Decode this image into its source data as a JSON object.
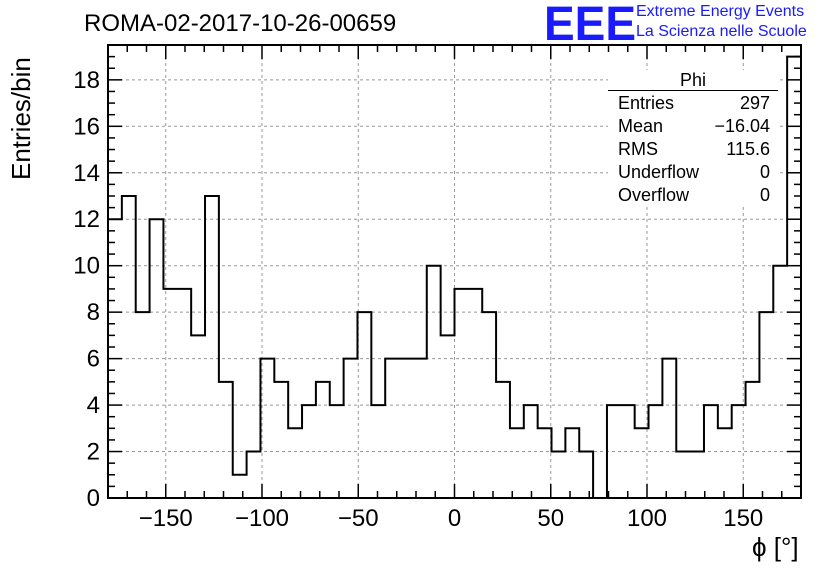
{
  "header": {
    "run_title": "ROMA-02-2017-10-26-00659",
    "logo_letters": "EEE",
    "logo_line1": "Extreme Energy Events",
    "logo_line2": "La Scienza nelle Scuole",
    "logo_color": "#1a1aff"
  },
  "stats": {
    "name": "Phi",
    "rows": [
      {
        "label": "Entries",
        "value": "297"
      },
      {
        "label": "Mean",
        "value": "−16.04"
      },
      {
        "label": "RMS",
        "value": "115.6"
      },
      {
        "label": "Underflow",
        "value": "0"
      },
      {
        "label": "Overflow",
        "value": "0"
      }
    ]
  },
  "chart_data": {
    "type": "bar",
    "histogram_step": true,
    "title": "ROMA-02-2017-10-26-00659",
    "xlabel": "ϕ [°]",
    "ylabel": "Entries/bin",
    "xlim": [
      -180,
      180
    ],
    "ylim": [
      0,
      19.5
    ],
    "bin_width": 7.2,
    "bin_low_edges": [
      -180,
      -172.8,
      -165.6,
      -158.4,
      -151.2,
      -144,
      -136.8,
      -129.6,
      -122.4,
      -115.2,
      -108,
      -100.8,
      -93.6,
      -86.4,
      -79.2,
      -72,
      -64.8,
      -57.6,
      -50.4,
      -43.2,
      -36,
      -28.8,
      -21.6,
      -14.4,
      -7.2,
      0,
      7.2,
      14.4,
      21.6,
      28.8,
      36,
      43.2,
      50.4,
      57.6,
      64.8,
      72,
      79.2,
      86.4,
      93.6,
      100.8,
      108,
      115.2,
      122.4,
      129.6,
      136.8,
      144,
      151.2,
      158.4,
      165.6,
      172.8
    ],
    "values": [
      12,
      13,
      8,
      12,
      9,
      9,
      7,
      13,
      5,
      1,
      2,
      6,
      5,
      3,
      4,
      5,
      4,
      6,
      8,
      4,
      6,
      6,
      6,
      10,
      7,
      9,
      9,
      8,
      5,
      3,
      4,
      3,
      2,
      3,
      2,
      0,
      4,
      4,
      3,
      4,
      6,
      2,
      2,
      4,
      3,
      4,
      5,
      8,
      10,
      19
    ],
    "x_ticks": [
      -150,
      -100,
      -50,
      0,
      50,
      100,
      150
    ],
    "y_ticks": [
      0,
      2,
      4,
      6,
      8,
      10,
      12,
      14,
      16,
      18
    ],
    "grid": true,
    "line_color": "#000000"
  }
}
